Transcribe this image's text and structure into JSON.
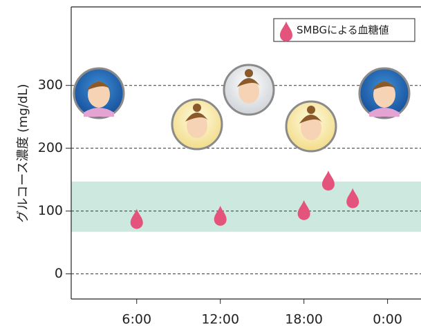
{
  "chart_data": {
    "type": "scatter",
    "y_label": "グルコース濃度 (mg/dL)",
    "x": [
      6,
      12,
      18,
      19.75,
      21.5
    ],
    "series": [
      {
        "name": "SMBGによる血糖値",
        "color": "#e4537c",
        "values": [
          87,
          92,
          101,
          148,
          120
        ]
      }
    ],
    "target_range": [
      67,
      147
    ],
    "target_color": "#cde9df",
    "xlim": [
      1.3,
      26.4
    ],
    "xticks": [
      {
        "value": 6,
        "label": "6:00"
      },
      {
        "value": 12,
        "label": "12:00"
      },
      {
        "value": 18,
        "label": "18:00"
      },
      {
        "value": 24,
        "label": "0:00"
      }
    ],
    "ylim": [
      -40,
      425
    ],
    "yticks": [
      0,
      100,
      200,
      300
    ],
    "grid": true,
    "legend": "top-right"
  }
}
